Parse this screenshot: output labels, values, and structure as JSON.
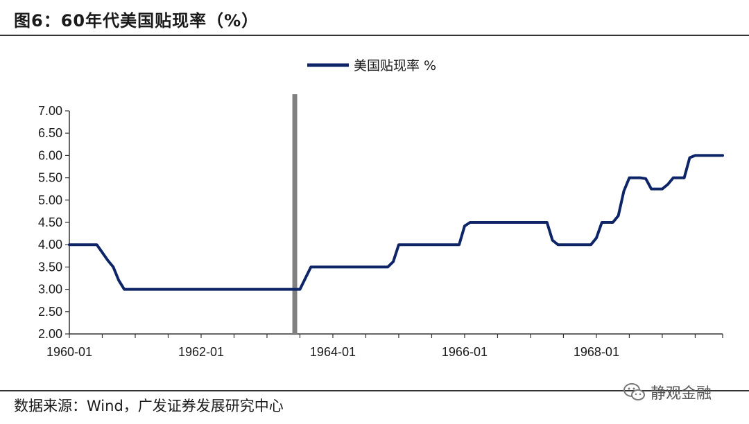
{
  "figure": {
    "title": "图6：60年代美国贴现率（%）",
    "source": "数据来源：Wind，广发证券发展研究中心",
    "watermark": "静观金融",
    "watermark_icon": "wechat-icon"
  },
  "chart_data": {
    "type": "line",
    "title": "",
    "xlabel": "",
    "ylabel": "",
    "ylim": [
      2.0,
      7.0
    ],
    "y_ticks": [
      "2.00",
      "2.50",
      "3.00",
      "3.50",
      "4.00",
      "4.50",
      "5.00",
      "5.50",
      "6.00",
      "6.50",
      "7.00"
    ],
    "x_ticks": [
      "1960-01",
      "1962-01",
      "1964-01",
      "1966-01",
      "1968-01"
    ],
    "xlim": [
      "1960-01",
      "1969-12"
    ],
    "grid": false,
    "legend": "top-center",
    "marker_vertical_line": {
      "date": "1963-06",
      "color": "#808080"
    },
    "series": [
      {
        "name": "美国贴现率 %",
        "color": "#0d2466",
        "points": [
          [
            "1960-01",
            4.0
          ],
          [
            "1960-06",
            4.0
          ],
          [
            "1960-08",
            3.65
          ],
          [
            "1960-09",
            3.5
          ],
          [
            "1960-10",
            3.2
          ],
          [
            "1960-11",
            3.0
          ],
          [
            "1963-07",
            3.0
          ],
          [
            "1963-08",
            3.25
          ],
          [
            "1963-09",
            3.5
          ],
          [
            "1964-11",
            3.5
          ],
          [
            "1964-12",
            3.62
          ],
          [
            "1965-01",
            4.0
          ],
          [
            "1965-12",
            4.0
          ],
          [
            "1966-01",
            4.42
          ],
          [
            "1966-02",
            4.5
          ],
          [
            "1967-04",
            4.5
          ],
          [
            "1967-05",
            4.1
          ],
          [
            "1967-06",
            4.0
          ],
          [
            "1967-12",
            4.0
          ],
          [
            "1968-01",
            4.15
          ],
          [
            "1968-02",
            4.5
          ],
          [
            "1968-04",
            4.5
          ],
          [
            "1968-05",
            4.65
          ],
          [
            "1968-06",
            5.2
          ],
          [
            "1968-07",
            5.5
          ],
          [
            "1968-09",
            5.5
          ],
          [
            "1968-10",
            5.48
          ],
          [
            "1968-11",
            5.25
          ],
          [
            "1969-01",
            5.25
          ],
          [
            "1969-02",
            5.35
          ],
          [
            "1969-03",
            5.5
          ],
          [
            "1969-05",
            5.5
          ],
          [
            "1969-06",
            5.95
          ],
          [
            "1969-07",
            6.0
          ],
          [
            "1969-12",
            6.0
          ]
        ]
      }
    ]
  }
}
